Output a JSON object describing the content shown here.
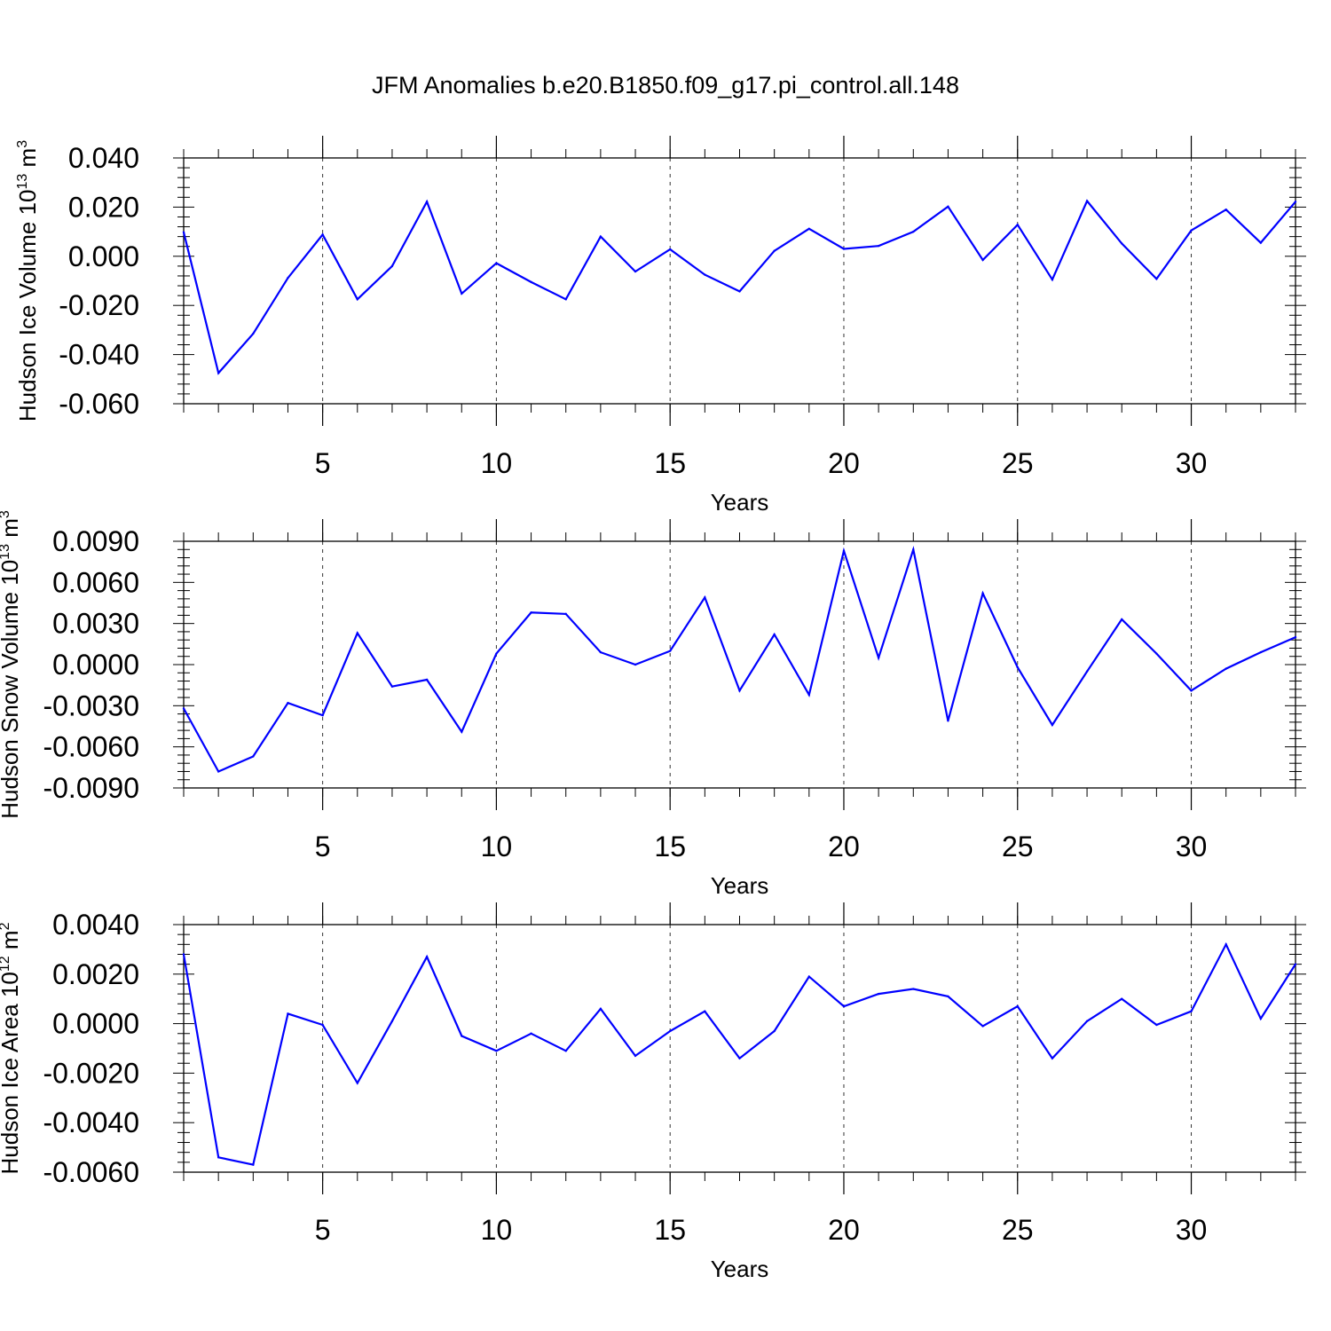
{
  "title": "JFM Anomalies b.e20.B1850.f09_g17.pi_control.all.148",
  "line_color": "#0000ff",
  "chart_data": [
    {
      "type": "line",
      "ylabel_main": "Hudson Ice Volume 10",
      "ylabel_exp": "13",
      "ylabel_unit": " m",
      "ylabel_unit_exp": "3",
      "xlabel": "Years",
      "xlim": [
        1,
        33
      ],
      "ylim": [
        -0.06,
        0.04
      ],
      "yticks": [
        "0.040",
        "0.020",
        "0.000",
        "-0.020",
        "-0.040",
        "-0.060"
      ],
      "xticks": [
        "5",
        "10",
        "15",
        "20",
        "25",
        "30"
      ],
      "grid": "dashed vertical at x major ticks",
      "x": [
        1,
        2,
        3,
        4,
        5,
        6,
        7,
        8,
        9,
        10,
        11,
        12,
        13,
        14,
        15,
        16,
        17,
        18,
        19,
        20,
        21,
        22,
        23,
        24,
        25,
        26,
        27,
        28,
        29,
        30,
        31,
        32,
        33
      ],
      "y": [
        0.0098,
        -0.0475,
        -0.0315,
        -0.0088,
        0.0088,
        -0.0175,
        -0.004,
        0.0222,
        -0.0152,
        -0.0028,
        -0.0105,
        -0.0175,
        0.008,
        -0.0062,
        0.0028,
        -0.0075,
        -0.0143,
        0.0022,
        0.0112,
        0.003,
        0.0042,
        0.01,
        0.0202,
        -0.0015,
        0.0128,
        -0.0095,
        0.0225,
        0.0052,
        -0.0092,
        0.0105,
        0.019,
        0.0055,
        0.0222
      ]
    },
    {
      "type": "line",
      "ylabel_main": "Hudson Snow Volume 10",
      "ylabel_exp": "13",
      "ylabel_unit": " m",
      "ylabel_unit_exp": "3",
      "xlabel": "Years",
      "xlim": [
        1,
        33
      ],
      "ylim": [
        -0.009,
        0.009
      ],
      "yticks": [
        "0.0090",
        "0.0060",
        "0.0030",
        "0.0000",
        "-0.0030",
        "-0.0060",
        "-0.0090"
      ],
      "xticks": [
        "5",
        "10",
        "15",
        "20",
        "25",
        "30"
      ],
      "grid": "dashed vertical at x major ticks",
      "x": [
        1,
        2,
        3,
        4,
        5,
        6,
        7,
        8,
        9,
        10,
        11,
        12,
        13,
        14,
        15,
        16,
        17,
        18,
        19,
        20,
        21,
        22,
        23,
        24,
        25,
        26,
        27,
        28,
        29,
        30,
        31,
        32,
        33
      ],
      "y": [
        -0.0032,
        -0.0078,
        -0.0067,
        -0.0028,
        -0.0037,
        0.0023,
        -0.0016,
        -0.0011,
        -0.0049,
        0.0008,
        0.0038,
        0.0037,
        0.0009,
        0.0,
        0.001,
        0.0049,
        -0.0019,
        0.0022,
        -0.0022,
        0.0083,
        0.0005,
        0.0084,
        -0.0041,
        0.0052,
        -0.0002,
        -0.0044,
        -0.0005,
        0.0033,
        0.0008,
        -0.0019,
        -0.0003,
        0.0009,
        0.002
      ]
    },
    {
      "type": "line",
      "ylabel_main": "Hudson Ice Area 10",
      "ylabel_exp": "12",
      "ylabel_unit": " m",
      "ylabel_unit_exp": "2",
      "xlabel": "Years",
      "xlim": [
        1,
        33
      ],
      "ylim": [
        -0.006,
        0.004
      ],
      "yticks": [
        "0.0040",
        "0.0020",
        "0.0000",
        "-0.0020",
        "-0.0040",
        "-0.0060"
      ],
      "xticks": [
        "5",
        "10",
        "15",
        "20",
        "25",
        "30"
      ],
      "grid": "dashed vertical at x major ticks",
      "x": [
        1,
        2,
        3,
        4,
        5,
        6,
        7,
        8,
        9,
        10,
        11,
        12,
        13,
        14,
        15,
        16,
        17,
        18,
        19,
        20,
        21,
        22,
        23,
        24,
        25,
        26,
        27,
        28,
        29,
        30,
        31,
        32,
        33
      ],
      "y": [
        0.0028,
        -0.0054,
        -0.0057,
        0.0004,
        -5e-05,
        -0.0024,
        0.0001,
        0.0027,
        -0.0005,
        -0.0011,
        -0.0004,
        -0.0011,
        0.0006,
        -0.0013,
        -0.0003,
        0.0005,
        -0.0014,
        -0.0003,
        0.0019,
        0.0007,
        0.0012,
        0.0014,
        0.0011,
        -0.0001,
        0.0007,
        -0.0014,
        0.0001,
        0.001,
        -5e-05,
        0.0005,
        0.0032,
        0.0002,
        0.0024
      ]
    }
  ]
}
